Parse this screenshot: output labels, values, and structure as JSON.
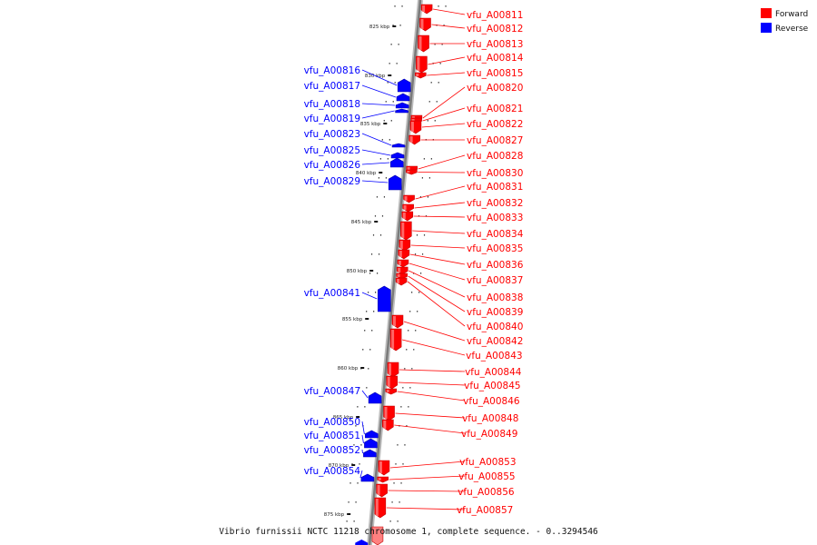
{
  "caption": "Vibrio furnissii NCTC 11218 chromosome 1, complete sequence. - 0..3294546",
  "legend": [
    {
      "label": "Forward",
      "color": "#ff0000"
    },
    {
      "label": "Reverse",
      "color": "#0000ff"
    }
  ],
  "colors": {
    "forward": "#ff0000",
    "reverse": "#0000ff",
    "backbone": "#999999"
  },
  "ticks": [
    "825 kbp",
    "830 kbp",
    "835 kbp",
    "840 kbp",
    "845 kbp",
    "850 kbp",
    "855 kbp",
    "860 kbp",
    "865 kbp",
    "870 kbp",
    "875 kbp"
  ],
  "forward_genes": [
    "vfu_A00811",
    "vfu_A00812",
    "vfu_A00813",
    "vfu_A00814",
    "vfu_A00815",
    "vfu_A00820",
    "vfu_A00821",
    "vfu_A00822",
    "vfu_A00827",
    "vfu_A00828",
    "vfu_A00830",
    "vfu_A00831",
    "vfu_A00832",
    "vfu_A00833",
    "vfu_A00834",
    "vfu_A00835",
    "vfu_A00836",
    "vfu_A00837",
    "vfu_A00838",
    "vfu_A00839",
    "vfu_A00840",
    "vfu_A00842",
    "vfu_A00843",
    "vfu_A00844",
    "vfu_A00845",
    "vfu_A00846",
    "vfu_A00848",
    "vfu_A00849",
    "vfu_A00853",
    "vfu_A00855",
    "vfu_A00856",
    "vfu_A00857"
  ],
  "reverse_genes": [
    "vfu_A00816",
    "vfu_A00817",
    "vfu_A00818",
    "vfu_A00819",
    "vfu_A00823",
    "vfu_A00825",
    "vfu_A00826",
    "vfu_A00829",
    "vfu_A00841",
    "vfu_A00847",
    "vfu_A00850",
    "vfu_A00851",
    "vfu_A00852",
    "vfu_A00854"
  ]
}
